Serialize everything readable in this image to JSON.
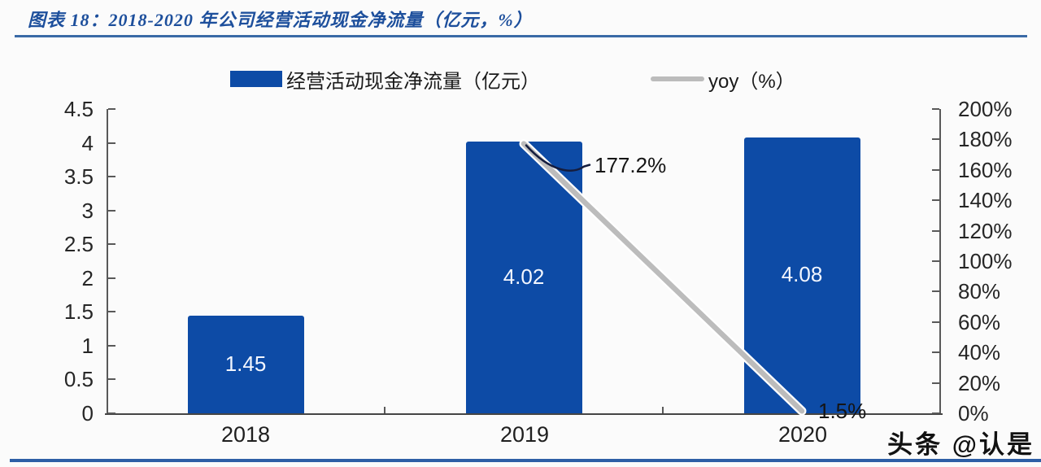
{
  "header": {
    "title": "图表 18：2018-2020 年公司经营活动现金净流量（亿元，%）"
  },
  "legend": {
    "bar_label": "经营活动现金净流量（亿元）",
    "line_label": "yoy（%）"
  },
  "watermark": "头条 @认是",
  "colors": {
    "bar": "#0d4ba6",
    "line": "#bcbcbc",
    "title": "#1d4f9c",
    "title_rule": "#3a6aa6",
    "bottom_rule": "#2e5fa6",
    "axis": "#595959",
    "text": "#262626",
    "callout": "#151d3e",
    "bar_label": "#f2f6ff"
  },
  "chart_data": {
    "type": "bar",
    "title": "图表 18：2018-2020 年公司经营活动现金净流量（亿元，%）",
    "categories": [
      "2018",
      "2019",
      "2020"
    ],
    "series": [
      {
        "name": "经营活动现金净流量（亿元）",
        "type": "bar",
        "axis": "left",
        "values": [
          1.45,
          4.02,
          4.08
        ],
        "labels": [
          "1.45",
          "4.02",
          "4.08"
        ],
        "color": "#0d4ba6"
      },
      {
        "name": "yoy（%）",
        "type": "line",
        "axis": "right",
        "values": [
          null,
          177.2,
          1.5
        ],
        "labels": [
          "",
          "177.2%",
          "1.5%"
        ],
        "color": "#bcbcbc"
      }
    ],
    "left_axis": {
      "min": 0,
      "max": 4.5,
      "step": 0.5,
      "ticks": [
        "4.5",
        "4",
        "3.5",
        "3",
        "2.5",
        "2",
        "1.5",
        "1",
        "0.5",
        "0"
      ]
    },
    "right_axis": {
      "min": 0,
      "max": 200,
      "step": 20,
      "ticks": [
        "200%",
        "180%",
        "160%",
        "140%",
        "120%",
        "100%",
        "80%",
        "60%",
        "40%",
        "20%",
        "0%"
      ]
    },
    "legend_position": "top",
    "grid": false
  }
}
